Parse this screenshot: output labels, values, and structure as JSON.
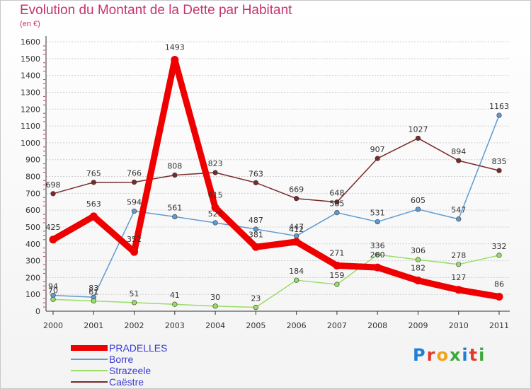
{
  "title": "Evolution du Montant de la Dette par Habitant",
  "subtitle": "(en €)",
  "logo_text": "Proxiti",
  "colors": {
    "title": "#c8326e",
    "grid": "#d0d0d0",
    "axis": "#333333",
    "legend_text": "#3b3bd0"
  },
  "chart_data": {
    "type": "line",
    "x": [
      "2000",
      "2001",
      "2002",
      "2003",
      "2004",
      "2005",
      "2006",
      "2007",
      "2008",
      "2009",
      "2010",
      "2011"
    ],
    "ylim": [
      0,
      1600
    ],
    "yticks": [
      "0",
      "100",
      "200",
      "300",
      "400",
      "500",
      "600",
      "700",
      "800",
      "900",
      "1000",
      "1100",
      "1200",
      "1300",
      "1400",
      "1500",
      "1600"
    ],
    "grid": "horizontal-dashed",
    "legend_placement": "bottom-left",
    "series": [
      {
        "name": "PRADELLES",
        "color": "#ee0000",
        "emphasis": true,
        "values": [
          425,
          563,
          352,
          1493,
          615,
          381,
          412,
          271,
          260,
          182,
          127,
          86
        ],
        "labels": [
          "425",
          "563",
          "352",
          "1493",
          "615",
          "381",
          "412",
          "271",
          "260",
          "182",
          "127",
          "86"
        ]
      },
      {
        "name": "Borre",
        "color": "#5f9bd0",
        "values": [
          94,
          83,
          594,
          561,
          525,
          487,
          447,
          585,
          531,
          605,
          547,
          1163
        ],
        "labels": [
          "94",
          "83",
          "594",
          "561",
          "525",
          "487",
          "447",
          "585",
          "531",
          "605",
          "547",
          "1163"
        ]
      },
      {
        "name": "Strazeele",
        "color": "#99dd66",
        "values": [
          70,
          61,
          51,
          41,
          30,
          23,
          184,
          159,
          336,
          306,
          278,
          332
        ],
        "labels": [
          "70",
          "61",
          "51",
          "41",
          "30",
          "23",
          "184",
          "159",
          "336",
          "306",
          "278",
          "332"
        ]
      },
      {
        "name": "Caëstre",
        "color": "#7a2a2a",
        "values": [
          698,
          765,
          766,
          808,
          823,
          763,
          669,
          648,
          907,
          1027,
          894,
          835
        ],
        "labels": [
          "698",
          "765",
          "766",
          "808",
          "823",
          "763",
          "669",
          "648",
          "907",
          "1027",
          "894",
          "835"
        ]
      }
    ]
  }
}
